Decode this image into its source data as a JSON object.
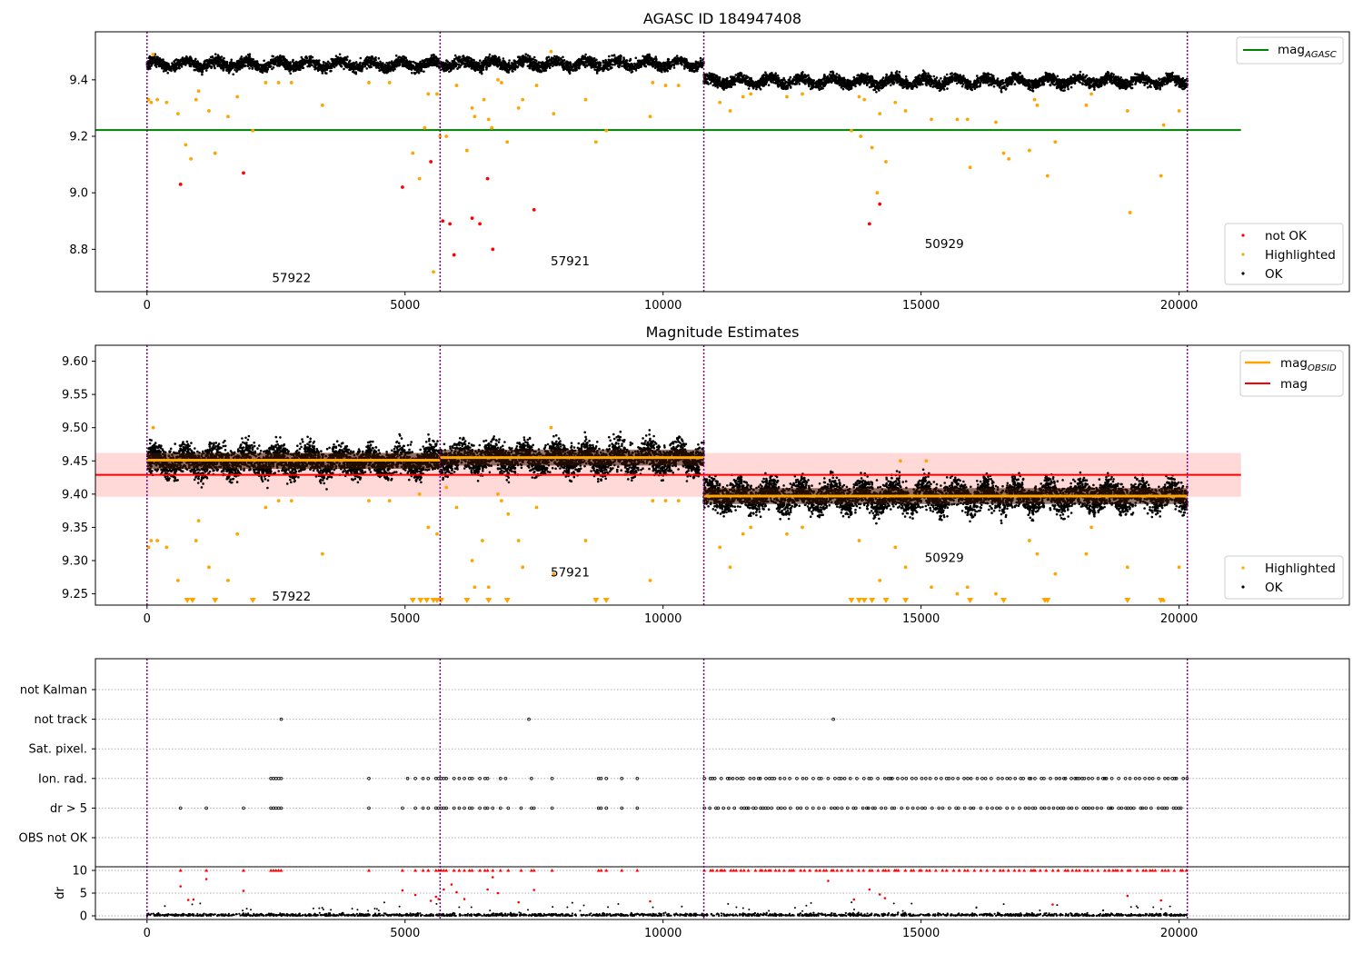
{
  "chart_data": [
    {
      "type": "scatter",
      "title": "AGASC ID 184947408",
      "xlim": [
        -1000,
        23300
      ],
      "ylim": [
        8.65,
        9.57
      ],
      "x_ticks": [
        0,
        5000,
        10000,
        15000,
        20000
      ],
      "y_ticks": [
        8.8,
        9.0,
        9.2,
        9.4
      ],
      "obs_boundaries": [
        0,
        5680,
        10790,
        20160
      ],
      "obs_labels": [
        {
          "text": "57922",
          "x": 2800,
          "y": 8.7
        },
        {
          "text": "57921",
          "x": 8200,
          "y": 8.76
        },
        {
          "text": "50929",
          "x": 15450,
          "y": 8.82
        }
      ],
      "hlines": [
        {
          "name": "mag_AGASC",
          "y": 9.222,
          "x": [
            -1000,
            21200
          ],
          "color": "#008000"
        }
      ],
      "ok_band": [
        {
          "x": [
            0,
            5680
          ],
          "center": 9.455,
          "half_width": 0.03
        },
        {
          "x": [
            5680,
            10790
          ],
          "center": 9.457,
          "half_width": 0.03
        },
        {
          "x": [
            10790,
            20160
          ],
          "center": 9.395,
          "half_width": 0.03
        }
      ],
      "series": [
        {
          "name": "not OK",
          "color": "#ff0000",
          "points": [
            [
              650,
              9.03
            ],
            [
              1870,
              9.07
            ],
            [
              4950,
              9.02
            ],
            [
              5500,
              9.11
            ],
            [
              5730,
              8.9
            ],
            [
              5870,
              8.89
            ],
            [
              5950,
              8.78
            ],
            [
              6300,
              8.91
            ],
            [
              6450,
              8.89
            ],
            [
              6600,
              9.05
            ],
            [
              6700,
              8.8
            ],
            [
              7500,
              8.94
            ],
            [
              14000,
              8.89
            ],
            [
              14200,
              8.96
            ]
          ]
        },
        {
          "name": "Highlighted",
          "color": "#ffa500",
          "points": [
            [
              30,
              9.33
            ],
            [
              80,
              9.32
            ],
            [
              120,
              9.49
            ],
            [
              200,
              9.33
            ],
            [
              380,
              9.32
            ],
            [
              600,
              9.28
            ],
            [
              750,
              9.17
            ],
            [
              850,
              9.12
            ],
            [
              950,
              9.33
            ],
            [
              1000,
              9.36
            ],
            [
              1200,
              9.29
            ],
            [
              1320,
              9.14
            ],
            [
              1570,
              9.27
            ],
            [
              1750,
              9.34
            ],
            [
              2050,
              9.22
            ],
            [
              2300,
              9.39
            ],
            [
              2550,
              9.39
            ],
            [
              2800,
              9.39
            ],
            [
              3400,
              9.31
            ],
            [
              4300,
              9.39
            ],
            [
              4700,
              9.39
            ],
            [
              5150,
              9.14
            ],
            [
              5280,
              9.05
            ],
            [
              5380,
              9.23
            ],
            [
              5450,
              9.35
            ],
            [
              5550,
              8.72
            ],
            [
              5620,
              9.35
            ],
            [
              5680,
              9.2
            ],
            [
              5800,
              9.2
            ],
            [
              6000,
              9.38
            ],
            [
              6200,
              9.15
            ],
            [
              6300,
              9.3
            ],
            [
              6350,
              9.27
            ],
            [
              6530,
              9.33
            ],
            [
              6620,
              9.26
            ],
            [
              6680,
              9.23
            ],
            [
              6800,
              9.4
            ],
            [
              6870,
              9.39
            ],
            [
              6980,
              9.18
            ],
            [
              7200,
              9.3
            ],
            [
              7280,
              9.33
            ],
            [
              7550,
              9.38
            ],
            [
              7830,
              9.5
            ],
            [
              7880,
              9.28
            ],
            [
              8500,
              9.33
            ],
            [
              8700,
              9.18
            ],
            [
              8900,
              9.22
            ],
            [
              9750,
              9.27
            ],
            [
              9800,
              9.39
            ],
            [
              10050,
              9.38
            ],
            [
              10300,
              9.38
            ],
            [
              11100,
              9.32
            ],
            [
              11300,
              9.29
            ],
            [
              11550,
              9.34
            ],
            [
              11700,
              9.35
            ],
            [
              12400,
              9.34
            ],
            [
              12700,
              9.35
            ],
            [
              13650,
              9.22
            ],
            [
              13800,
              9.34
            ],
            [
              13830,
              9.2
            ],
            [
              13900,
              9.33
            ],
            [
              14050,
              9.16
            ],
            [
              14200,
              9.28
            ],
            [
              14150,
              9.0
            ],
            [
              14320,
              9.11
            ],
            [
              14500,
              9.32
            ],
            [
              14700,
              9.29
            ],
            [
              15200,
              9.26
            ],
            [
              15700,
              9.26
            ],
            [
              15900,
              9.26
            ],
            [
              15950,
              9.09
            ],
            [
              16450,
              9.25
            ],
            [
              16600,
              9.14
            ],
            [
              16700,
              9.12
            ],
            [
              17100,
              9.15
            ],
            [
              17200,
              9.33
            ],
            [
              17250,
              9.31
            ],
            [
              17450,
              9.06
            ],
            [
              17600,
              9.18
            ],
            [
              18200,
              9.31
            ],
            [
              18300,
              9.35
            ],
            [
              19000,
              9.29
            ],
            [
              19050,
              8.93
            ],
            [
              19650,
              9.06
            ],
            [
              19700,
              9.24
            ],
            [
              20000,
              9.29
            ]
          ]
        }
      ]
    },
    {
      "type": "scatter",
      "title": "Magnitude Estimates",
      "xlim": [
        -1000,
        23300
      ],
      "ylim": [
        9.233,
        9.624
      ],
      "x_ticks": [
        0,
        5000,
        10000,
        15000,
        20000
      ],
      "y_ticks": [
        9.25,
        9.3,
        9.35,
        9.4,
        9.45,
        9.5,
        9.55,
        9.6
      ],
      "obs_boundaries": [
        0,
        5680,
        10790,
        20160
      ],
      "obs_labels": [
        {
          "text": "57922",
          "x": 2800,
          "y": 9.247
        },
        {
          "text": "57921",
          "x": 8200,
          "y": 9.283
        },
        {
          "text": "50929",
          "x": 15450,
          "y": 9.305
        }
      ],
      "mag_band": {
        "x": [
          -1000,
          21200
        ],
        "y": [
          9.396,
          9.462
        ],
        "color": "#ffd8d8"
      },
      "hlines": [
        {
          "name": "mag",
          "y": 9.429,
          "x": [
            -1000,
            21200
          ],
          "color": "#ff0000"
        }
      ],
      "obs_mag_segments": [
        {
          "x": [
            0,
            5680
          ],
          "y": 9.451
        },
        {
          "x": [
            5680,
            10790
          ],
          "y": 9.455
        },
        {
          "x": [
            10790,
            20160
          ],
          "y": 9.397
        }
      ],
      "ok_band": [
        {
          "x": [
            0,
            5680
          ],
          "center": 9.45,
          "half_width": 0.035
        },
        {
          "x": [
            5680,
            10790
          ],
          "center": 9.455,
          "half_width": 0.035
        },
        {
          "x": [
            10790,
            20160
          ],
          "center": 9.397,
          "half_width": 0.035
        }
      ],
      "lower_markers_x": [
        780,
        880,
        1320,
        2050,
        5150,
        5300,
        5420,
        5550,
        5620,
        5700,
        6200,
        6620,
        6980,
        8700,
        8900,
        13650,
        13800,
        13900,
        14050,
        14320,
        14700,
        15950,
        16600,
        17400,
        17450,
        19000,
        19650
      ],
      "series": [
        {
          "name": "Highlighted",
          "color": "#ffa500",
          "points": [
            [
              30,
              9.32
            ],
            [
              80,
              9.33
            ],
            [
              120,
              9.5
            ],
            [
              200,
              9.33
            ],
            [
              380,
              9.32
            ],
            [
              600,
              9.27
            ],
            [
              950,
              9.33
            ],
            [
              1000,
              9.36
            ],
            [
              1200,
              9.29
            ],
            [
              1570,
              9.27
            ],
            [
              1750,
              9.34
            ],
            [
              2300,
              9.38
            ],
            [
              2550,
              9.39
            ],
            [
              2800,
              9.39
            ],
            [
              3400,
              9.31
            ],
            [
              4300,
              9.39
            ],
            [
              4700,
              9.39
            ],
            [
              5280,
              9.4
            ],
            [
              5450,
              9.35
            ],
            [
              5620,
              9.34
            ],
            [
              5800,
              9.41
            ],
            [
              6000,
              9.38
            ],
            [
              6300,
              9.3
            ],
            [
              6350,
              9.26
            ],
            [
              6500,
              9.33
            ],
            [
              6620,
              9.26
            ],
            [
              6800,
              9.4
            ],
            [
              6870,
              9.39
            ],
            [
              7000,
              9.37
            ],
            [
              7200,
              9.33
            ],
            [
              7280,
              9.29
            ],
            [
              7550,
              9.38
            ],
            [
              7830,
              9.5
            ],
            [
              7880,
              9.28
            ],
            [
              8500,
              9.33
            ],
            [
              9750,
              9.27
            ],
            [
              9800,
              9.39
            ],
            [
              10050,
              9.39
            ],
            [
              10300,
              9.39
            ],
            [
              11100,
              9.32
            ],
            [
              11300,
              9.29
            ],
            [
              11550,
              9.34
            ],
            [
              11700,
              9.35
            ],
            [
              12400,
              9.34
            ],
            [
              12700,
              9.35
            ],
            [
              13800,
              9.33
            ],
            [
              14200,
              9.27
            ],
            [
              14500,
              9.32
            ],
            [
              14700,
              9.29
            ],
            [
              15200,
              9.26
            ],
            [
              15700,
              9.25
            ],
            [
              15900,
              9.26
            ],
            [
              16450,
              9.25
            ],
            [
              17100,
              9.33
            ],
            [
              17250,
              9.31
            ],
            [
              17600,
              9.28
            ],
            [
              18200,
              9.31
            ],
            [
              18300,
              9.35
            ],
            [
              19000,
              9.29
            ],
            [
              19700,
              9.24
            ],
            [
              20000,
              9.29
            ],
            [
              14600,
              9.45
            ],
            [
              15100,
              9.45
            ]
          ]
        }
      ]
    },
    {
      "type": "scatter",
      "xlim": [
        -1000,
        23300
      ],
      "x_ticks": [
        0,
        5000,
        10000,
        15000,
        20000
      ],
      "flag_categories": [
        "not Kalman",
        "not track",
        "Sat. pixel.",
        "Ion. rad.",
        "dr > 5",
        "OBS not OK"
      ],
      "obs_boundaries": [
        0,
        5680,
        10790,
        20160
      ],
      "flags": {
        "not track": [
          2600,
          7400,
          13300
        ],
        "Ion. rad.": [
          2400,
          2450,
          2500,
          2550,
          2600,
          4300,
          5050,
          5200,
          5350,
          5450,
          5600,
          5650,
          5700,
          5750,
          5800,
          5950,
          6050,
          6150,
          6250,
          6300,
          6450,
          6550,
          6600,
          6850,
          6950,
          7450,
          7850,
          8750,
          8800,
          8900,
          9200,
          9500
        ],
        "dr > 5": [
          650,
          1150,
          1870,
          2400,
          2450,
          2500,
          2550,
          2600,
          4300,
          4950,
          5200,
          5350,
          5450,
          5600,
          5650,
          5700,
          5750,
          5800,
          5950,
          6050,
          6150,
          6250,
          6300,
          6450,
          6550,
          6600,
          6700,
          6850,
          7000,
          7250,
          7450,
          7500,
          7850,
          8750,
          8800,
          8900,
          9200,
          9500
        ]
      },
      "dense_flag_range": [
        10800,
        20160
      ],
      "dr": {
        "ylabel": "dr",
        "ylim": [
          -0.8,
          10.8
        ],
        "y_ticks": [
          0,
          5,
          10
        ],
        "big": [
          [
            650,
            6.5
          ],
          [
            800,
            3.5
          ],
          [
            900,
            3.6
          ],
          [
            1150,
            8.1
          ],
          [
            1870,
            5.5
          ],
          [
            4950,
            5.6
          ],
          [
            5200,
            4.6
          ],
          [
            5500,
            3.3
          ],
          [
            5600,
            4.2
          ],
          [
            5650,
            3.7
          ],
          [
            5750,
            5.8
          ],
          [
            5900,
            6.9
          ],
          [
            6000,
            5.2
          ],
          [
            6150,
            3.7
          ],
          [
            6600,
            5.8
          ],
          [
            6700,
            8.5
          ],
          [
            6800,
            5.0
          ],
          [
            7200,
            3.0
          ],
          [
            7500,
            5.7
          ],
          [
            9750,
            3.2
          ],
          [
            13200,
            7.7
          ],
          [
            13700,
            3.6
          ],
          [
            14000,
            5.8
          ],
          [
            14200,
            4.7
          ],
          [
            14300,
            3.9
          ],
          [
            17550,
            2.5
          ],
          [
            19000,
            4.4
          ],
          [
            19650,
            3.4
          ]
        ]
      }
    }
  ]
}
